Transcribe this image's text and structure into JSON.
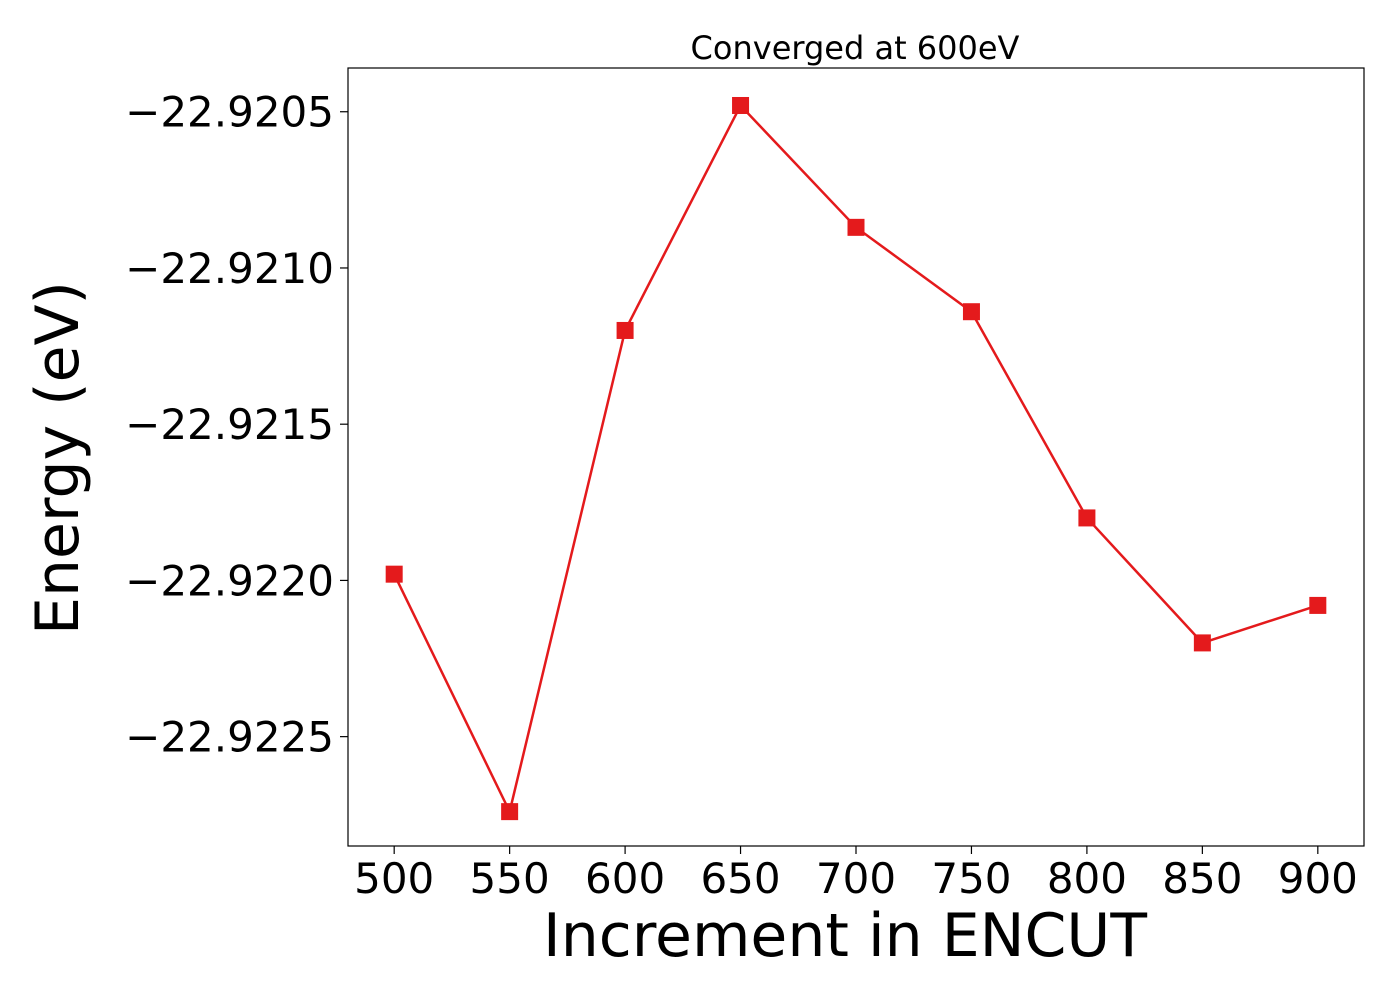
{
  "chart_data": {
    "type": "line",
    "title": "Converged at 600eV",
    "xlabel": "Increment in ENCUT",
    "ylabel": "Energy (eV)",
    "x": [
      500,
      550,
      600,
      650,
      700,
      750,
      800,
      850,
      900
    ],
    "series": [
      {
        "color": "#e41a1c",
        "marker": "square",
        "values": [
          -22.92198,
          -22.92274,
          -22.9212,
          -22.92048,
          -22.92087,
          -22.92114,
          -22.9218,
          -22.9222,
          -22.92208
        ]
      }
    ],
    "xlim": [
      480,
      920
    ],
    "ylim": [
      -22.92285,
      -22.92036
    ],
    "xticks": [
      500,
      550,
      600,
      650,
      700,
      750,
      800,
      850,
      900
    ],
    "xtick_labels": [
      "500",
      "550",
      "600",
      "650",
      "700",
      "750",
      "800",
      "850",
      "900"
    ],
    "yticks": [
      -22.9205,
      -22.921,
      -22.9215,
      -22.922,
      -22.9225
    ],
    "ytick_labels": [
      "−22.9205",
      "−22.9210",
      "−22.9215",
      "−22.9220",
      "−22.9225"
    ],
    "grid": false,
    "legend": "none"
  }
}
